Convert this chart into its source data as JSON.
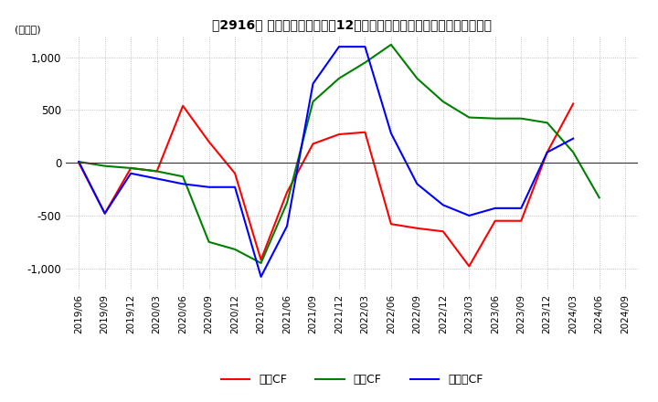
{
  "title": "　2916、 キャッシュフローの12か月移動合計の対前年同期増減額の推移",
  "title_bracket": "、2916〃",
  "ylabel": "(百万円)",
  "ylim": [
    -1200,
    1200
  ],
  "yticks": [
    -1000,
    -500,
    0,
    500,
    1000
  ],
  "dates": [
    "2019/06",
    "2019/09",
    "2019/12",
    "2020/03",
    "2020/06",
    "2020/09",
    "2020/12",
    "2021/03",
    "2021/06",
    "2021/09",
    "2021/12",
    "2022/03",
    "2022/06",
    "2022/09",
    "2022/12",
    "2023/03",
    "2023/06",
    "2023/09",
    "2023/12",
    "2024/03",
    "2024/06",
    "2024/09"
  ],
  "operating_cf": [
    0,
    -480,
    -50,
    -80,
    540,
    200,
    -100,
    -920,
    -280,
    180,
    270,
    290,
    -580,
    -620,
    -650,
    -980,
    -550,
    -550,
    100,
    560,
    null,
    null
  ],
  "investing_cf": [
    10,
    -30,
    -50,
    -80,
    -130,
    -750,
    -820,
    -950,
    -380,
    580,
    800,
    950,
    1120,
    800,
    580,
    430,
    420,
    420,
    380,
    100,
    -330,
    null
  ],
  "free_cf": [
    10,
    -480,
    -100,
    -150,
    -200,
    -230,
    -230,
    -1080,
    -600,
    750,
    1100,
    1100,
    280,
    -200,
    -400,
    -500,
    -430,
    -430,
    100,
    230,
    null,
    null
  ],
  "operating_color": "#ff0000",
  "investing_color": "#008000",
  "free_color": "#0000ff",
  "background_color": "#ffffff",
  "grid_color": "#b0b0b0"
}
